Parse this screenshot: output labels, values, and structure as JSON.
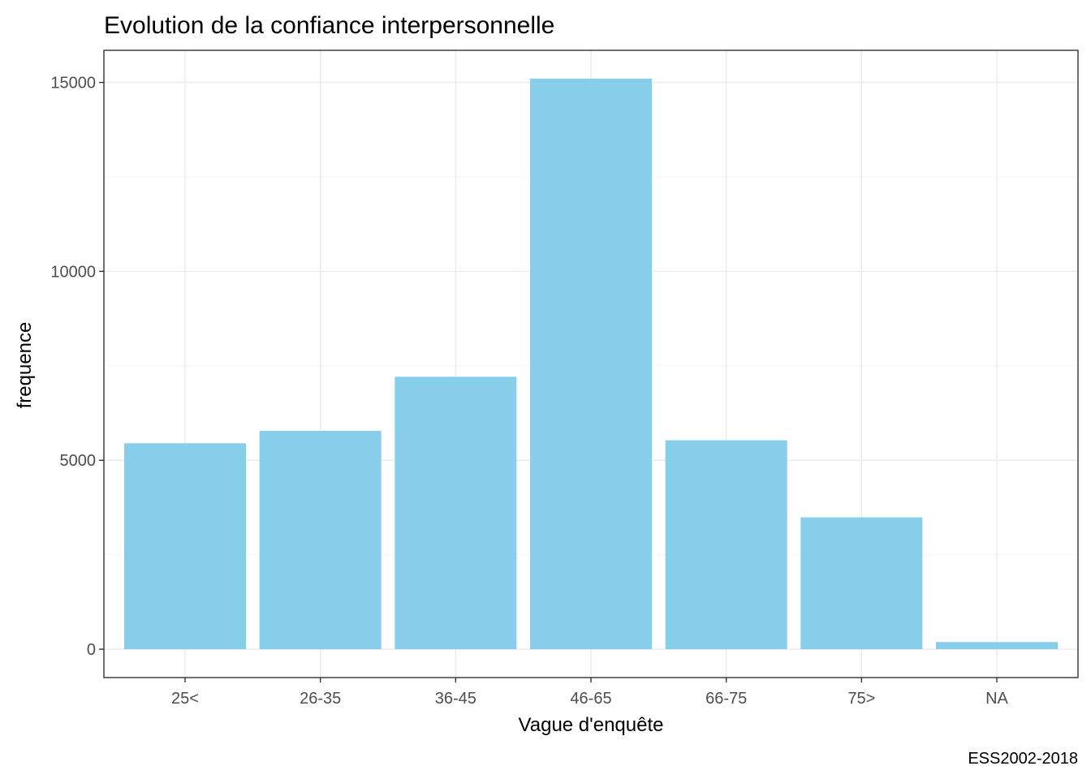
{
  "chart_data": {
    "type": "bar",
    "title": "Evolution de la confiance interpersonnelle",
    "xlabel": "Vague d'enquête",
    "ylabel": "frequence",
    "caption": "ESS2002-2018",
    "categories": [
      "25<",
      "26-35",
      "36-45",
      "46-65",
      "66-75",
      "75>",
      "NA"
    ],
    "values": [
      5450,
      5780,
      7210,
      15100,
      5530,
      3490,
      190
    ],
    "ylim": [
      -750,
      15850
    ],
    "yticks": [
      0,
      5000,
      10000,
      15000
    ],
    "ytick_labels": [
      "0",
      "5000",
      "10000",
      "15000"
    ],
    "bar_color": "#87ceeb",
    "grid": true,
    "legend": "none"
  }
}
